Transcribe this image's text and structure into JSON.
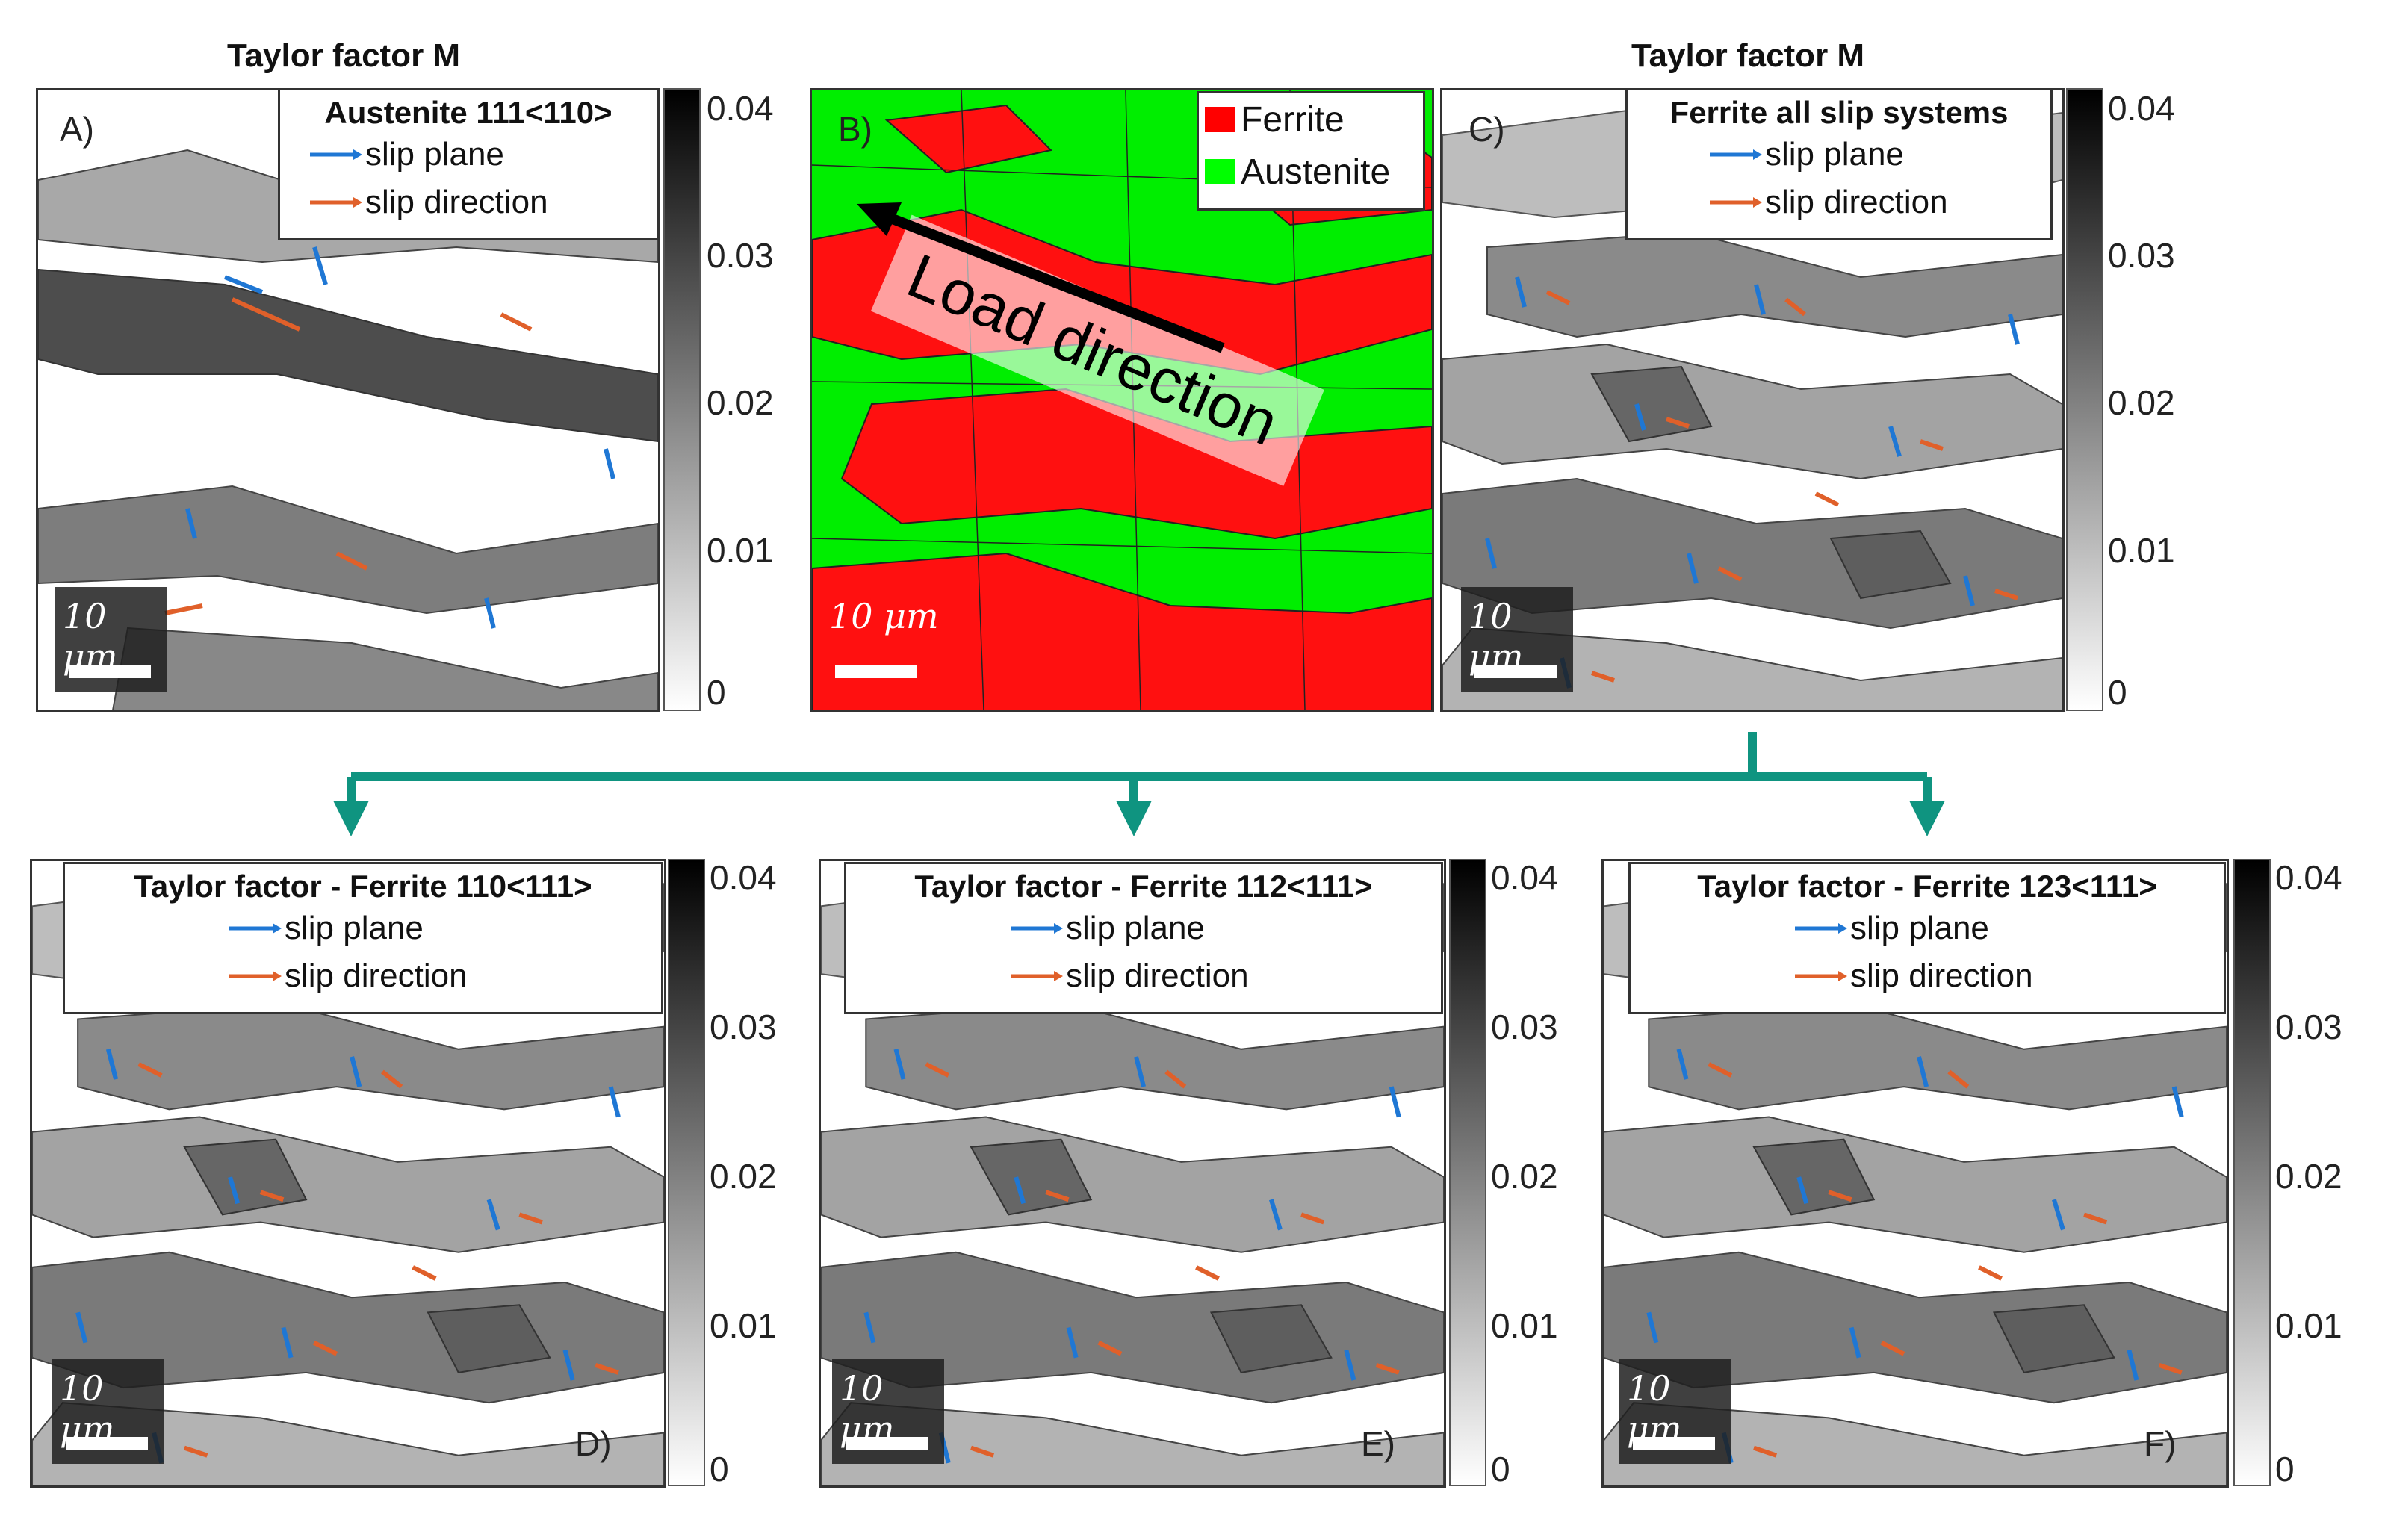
{
  "top_titles": {
    "left": "Taylor factor M",
    "right": "Taylor factor M"
  },
  "panels": {
    "A": {
      "letter": "A)",
      "legend_title": "Austenite 111<110>",
      "legend_items": [
        "slip plane",
        "slip direction"
      ],
      "scale_label": "10 μm"
    },
    "B": {
      "letter": "B)",
      "phase_legend": [
        {
          "label": "Ferrite",
          "color": "#ff0000"
        },
        {
          "label": "Austenite",
          "color": "#00ff00"
        }
      ],
      "annotation": "Load direction",
      "scale_label": "10 μm"
    },
    "C": {
      "letter": "C)",
      "legend_title": "Ferrite all slip systems",
      "legend_items": [
        "slip plane",
        "slip direction"
      ],
      "scale_label": "10 μm"
    },
    "D": {
      "letter": "D)",
      "legend_title": "Taylor factor - Ferrite 110<111>",
      "legend_items": [
        "slip plane",
        "slip direction"
      ],
      "scale_label": "10 μm"
    },
    "E": {
      "letter": "E)",
      "legend_title": "Taylor factor - Ferrite 112<111>",
      "legend_items": [
        "slip plane",
        "slip direction"
      ],
      "scale_label": "10 μm"
    },
    "F": {
      "letter": "F)",
      "legend_title": "Taylor factor - Ferrite 123<111>",
      "legend_items": [
        "slip plane",
        "slip direction"
      ],
      "scale_label": "10 μm"
    }
  },
  "colorbar_ticks": [
    "0.04",
    "0.03",
    "0.02",
    "0.01",
    "0"
  ],
  "colors": {
    "slip_plane": "#1f77d4",
    "slip_direction": "#e0602a",
    "connector": "#0f9480"
  }
}
